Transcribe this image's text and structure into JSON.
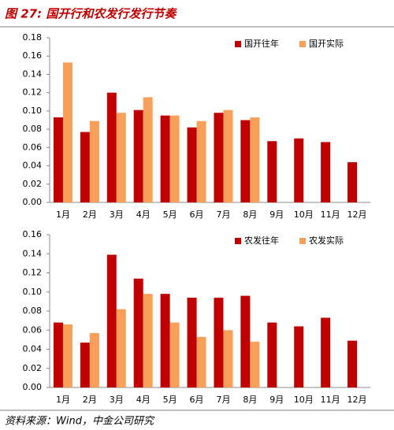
{
  "title": "图 27: 国开行和农发行发行节奏",
  "source": "资料来源：Wind，中金公司研究",
  "chart_data": [
    {
      "type": "bar",
      "categories": [
        "1月",
        "2月",
        "3月",
        "4月",
        "5月",
        "6月",
        "7月",
        "8月",
        "9月",
        "10月",
        "11月",
        "12月"
      ],
      "series": [
        {
          "name": "国开往年",
          "color": "#c00000",
          "values": [
            0.093,
            0.077,
            0.12,
            0.101,
            0.095,
            0.082,
            0.098,
            0.09,
            0.067,
            0.07,
            0.066,
            0.044
          ]
        },
        {
          "name": "国开实际",
          "color": "#f8a05a",
          "values": [
            0.153,
            0.089,
            0.098,
            0.115,
            0.095,
            0.089,
            0.101,
            0.093,
            null,
            null,
            null,
            null
          ]
        }
      ],
      "ylim": [
        0,
        0.18
      ],
      "yticks": [
        {
          "value": 0,
          "label": "0.00"
        },
        {
          "value": 0.02,
          "label": "0.02"
        },
        {
          "value": 0.04,
          "label": "0.04"
        },
        {
          "value": 0.06,
          "label": "0.06"
        },
        {
          "value": 0.08,
          "label": "0.08"
        },
        {
          "value": 0.1,
          "label": "0.10"
        },
        {
          "value": 0.12,
          "label": "0.12"
        },
        {
          "value": 0.14,
          "label": "0.14"
        },
        {
          "value": 0.16,
          "label": "0.16"
        },
        {
          "value": 0.18,
          "label": "0.18"
        }
      ],
      "legend": "upper right"
    },
    {
      "type": "bar",
      "categories": [
        "1月",
        "2月",
        "3月",
        "4月",
        "5月",
        "6月",
        "7月",
        "8月",
        "9月",
        "10月",
        "11月",
        "12月"
      ],
      "series": [
        {
          "name": "农发往年",
          "color": "#c00000",
          "values": [
            0.068,
            0.047,
            0.139,
            0.114,
            0.098,
            0.094,
            0.094,
            0.096,
            0.068,
            0.064,
            0.073,
            0.049
          ]
        },
        {
          "name": "农发实际",
          "color": "#f8a05a",
          "values": [
            0.066,
            0.057,
            0.082,
            0.098,
            0.068,
            0.053,
            0.06,
            0.048,
            null,
            null,
            null,
            null
          ]
        }
      ],
      "ylim": [
        0,
        0.16
      ],
      "yticks": [
        {
          "value": 0,
          "label": "0.00"
        },
        {
          "value": 0.02,
          "label": "0.02"
        },
        {
          "value": 0.04,
          "label": "0.04"
        },
        {
          "value": 0.06,
          "label": "0.06"
        },
        {
          "value": 0.08,
          "label": "0.08"
        },
        {
          "value": 0.1,
          "label": "0.10"
        },
        {
          "value": 0.12,
          "label": "0.12"
        },
        {
          "value": 0.14,
          "label": "0.14"
        },
        {
          "value": 0.16,
          "label": "0.16"
        }
      ],
      "legend": "upper right"
    }
  ]
}
